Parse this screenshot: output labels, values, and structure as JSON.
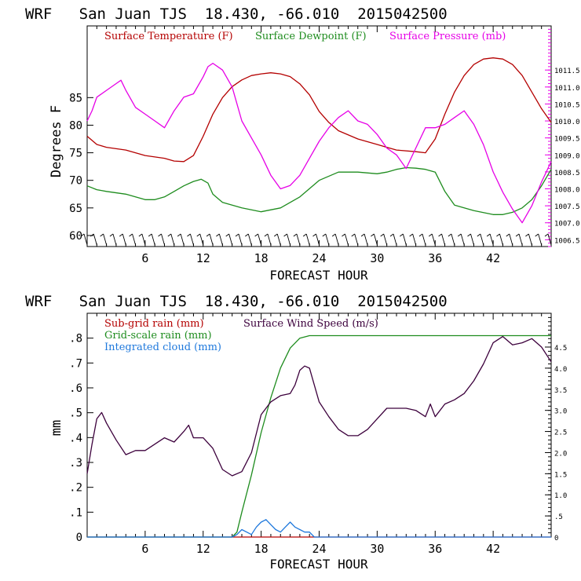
{
  "colors": {
    "temperature": "#b40000",
    "dewpoint": "#1e8c1e",
    "pressure": "#e600e6",
    "subgrid_rain": "#b40000",
    "gridscale_rain": "#1e8c1e",
    "cloud": "#1e78dc",
    "wind": "#3c003c",
    "axis": "#000000",
    "tick_right_top": "#e600e6",
    "tick_right_bottom": "#000000",
    "barbs": "#000000"
  },
  "chart_data": [
    {
      "type": "line",
      "title": "WRF   San Juan TJS  18.430, -66.010  2015042500",
      "xlabel": "FORECAST HOUR",
      "ylabel": "Degrees F",
      "xlim": [
        0,
        48
      ],
      "ylim": [
        58,
        98
      ],
      "ylim_right": [
        1006.3,
        1012.8
      ],
      "x_ticks": [
        6,
        12,
        18,
        24,
        30,
        36,
        42
      ],
      "x_tick_labels": [
        "6",
        "12",
        "18",
        "24",
        "30",
        "36",
        "42"
      ],
      "y_ticks": [
        60,
        65,
        70,
        75,
        80,
        85
      ],
      "y_tick_labels": [
        "60",
        "65",
        "70",
        "75",
        "80",
        "85"
      ],
      "y2_ticks": [
        1006.5,
        1007.0,
        1007.5,
        1008.0,
        1008.5,
        1009.0,
        1009.5,
        1010.0,
        1010.5,
        1011.0,
        1011.5
      ],
      "y2_tick_labels": [
        "1006.5",
        "1007.0",
        "1007.5",
        "1008.0",
        "1008.5",
        "1009.0",
        "1009.5",
        "1010.0",
        "1010.5",
        "1011.0",
        "1011.5"
      ],
      "legend": [
        "Surface Temperature (F)",
        "Surface Dewpoint (F)",
        "Surface Pressure (mb)"
      ],
      "legend_placement": "top-inside",
      "has_wind_barbs": true,
      "series": [
        {
          "name": "Surface Temperature (F)",
          "axis": "left",
          "x": [
            0,
            1,
            2,
            4,
            6,
            8,
            9,
            10,
            11,
            12,
            13,
            14,
            15,
            16,
            17,
            18,
            19,
            20,
            21,
            22,
            23,
            24,
            25,
            26,
            28,
            30,
            31,
            32,
            34,
            35,
            36,
            37,
            38,
            39,
            40,
            41,
            42,
            43,
            44,
            45,
            46,
            47,
            48
          ],
          "values": [
            78.0,
            76.5,
            76.0,
            75.5,
            74.5,
            74.0,
            73.5,
            73.4,
            74.5,
            78.0,
            82.0,
            85.0,
            87.0,
            88.2,
            89.0,
            89.3,
            89.5,
            89.3,
            88.8,
            87.5,
            85.5,
            82.5,
            80.5,
            79.0,
            77.5,
            76.5,
            76.0,
            75.5,
            75.2,
            75.0,
            77.5,
            82.0,
            86.0,
            89.0,
            91.0,
            92.0,
            92.2,
            92.0,
            91.0,
            89.0,
            86.0,
            83.0,
            80.5
          ]
        },
        {
          "name": "Surface Dewpoint (F)",
          "axis": "left",
          "x": [
            0,
            1,
            2,
            4,
            6,
            7,
            8,
            9,
            10,
            11,
            11.8,
            12.5,
            13,
            14,
            16,
            18,
            20,
            22,
            24,
            26,
            28,
            30,
            31,
            32,
            33,
            34,
            35,
            36,
            37,
            38,
            40,
            42,
            43,
            44,
            45,
            46,
            47,
            48
          ],
          "values": [
            69.0,
            68.3,
            68.0,
            67.5,
            66.5,
            66.5,
            67.0,
            68.0,
            69.0,
            69.8,
            70.2,
            69.5,
            67.5,
            66.0,
            65.0,
            64.3,
            65.0,
            67.0,
            70.0,
            71.5,
            71.5,
            71.2,
            71.5,
            72.0,
            72.3,
            72.2,
            72.0,
            71.5,
            68.0,
            65.5,
            64.5,
            63.8,
            63.8,
            64.2,
            65.0,
            66.5,
            69.0,
            72.0
          ]
        },
        {
          "name": "Surface Pressure (mb)",
          "axis": "right",
          "x": [
            0,
            0.5,
            1,
            2,
            3,
            3.5,
            4,
            5,
            6,
            7,
            8,
            9,
            10,
            11,
            12,
            12.5,
            13,
            14,
            15,
            16,
            17,
            18,
            19,
            20,
            21,
            22,
            23,
            24,
            25,
            26,
            27,
            28,
            29,
            30,
            31,
            32,
            33,
            34,
            35,
            36,
            37,
            38,
            39,
            40,
            41,
            42,
            43,
            44,
            45,
            46,
            47,
            48
          ],
          "values": [
            1010.0,
            1010.3,
            1010.7,
            1010.9,
            1011.1,
            1011.2,
            1010.9,
            1010.4,
            1010.2,
            1010.0,
            1009.8,
            1010.3,
            1010.7,
            1010.8,
            1011.3,
            1011.6,
            1011.7,
            1011.5,
            1011.0,
            1010.0,
            1009.5,
            1009.0,
            1008.4,
            1008.0,
            1008.1,
            1008.4,
            1008.9,
            1009.4,
            1009.8,
            1010.1,
            1010.3,
            1010.0,
            1009.9,
            1009.6,
            1009.2,
            1009.0,
            1008.6,
            1009.2,
            1009.8,
            1009.8,
            1009.9,
            1010.1,
            1010.3,
            1009.9,
            1009.3,
            1008.5,
            1007.9,
            1007.4,
            1007.0,
            1007.5,
            1008.2,
            1008.8
          ]
        }
      ]
    },
    {
      "type": "line",
      "title": "WRF   San Juan TJS  18.430, -66.010  2015042500",
      "xlabel": "FORECAST HOUR",
      "ylabel": "mm",
      "xlim": [
        0,
        48
      ],
      "ylim": [
        0,
        0.9
      ],
      "ylim_right": [
        0,
        5.3
      ],
      "x_ticks": [
        6,
        12,
        18,
        24,
        30,
        36,
        42
      ],
      "x_tick_labels": [
        "6",
        "12",
        "18",
        "24",
        "30",
        "36",
        "42"
      ],
      "y_ticks": [
        0,
        0.1,
        0.2,
        0.3,
        0.4,
        0.5,
        0.6,
        0.7,
        0.8
      ],
      "y_tick_labels": [
        "0",
        ".1",
        ".2",
        ".3",
        ".4",
        ".5",
        ".6",
        ".7",
        ".8"
      ],
      "y2_ticks": [
        0,
        0.5,
        1.0,
        1.5,
        2.0,
        2.5,
        3.0,
        3.5,
        4.0,
        4.5
      ],
      "y2_tick_labels": [
        "0",
        ".5",
        "1.0",
        "1.5",
        "2.0",
        "2.5",
        "3.0",
        "3.5",
        "4.0",
        "4.5"
      ],
      "legend": [
        "Sub-grid rain (mm)",
        "Grid-scale rain (mm)",
        "Integrated cloud (mm)",
        "Surface Wind Speed (m/s)"
      ],
      "legend_placement": "top-inside",
      "series": [
        {
          "name": "Sub-grid rain (mm)",
          "axis": "left",
          "x": [
            0,
            48
          ],
          "values": [
            0,
            0
          ]
        },
        {
          "name": "Grid-scale rain (mm)",
          "axis": "left",
          "x": [
            0,
            15,
            15.5,
            16,
            17,
            18,
            19,
            20,
            21,
            22,
            23,
            48
          ],
          "values": [
            0,
            0,
            0.02,
            0.1,
            0.25,
            0.42,
            0.56,
            0.68,
            0.76,
            0.8,
            0.81,
            0.81
          ]
        },
        {
          "name": "Integrated cloud (mm)",
          "axis": "left",
          "x": [
            0,
            15,
            15.5,
            16,
            16.5,
            17,
            17.5,
            18,
            18.5,
            19,
            19.5,
            20,
            20.5,
            21,
            21.5,
            22,
            22.5,
            23,
            23.5,
            24,
            48
          ],
          "values": [
            0,
            0,
            0.01,
            0.03,
            0.02,
            0.01,
            0.04,
            0.06,
            0.07,
            0.05,
            0.03,
            0.02,
            0.04,
            0.06,
            0.04,
            0.03,
            0.02,
            0.02,
            0.0,
            0.0,
            0.0
          ]
        },
        {
          "name": "Surface Wind Speed (m/s)",
          "axis": "right",
          "x": [
            0,
            0.5,
            1,
            1.5,
            2,
            3,
            4,
            5,
            6,
            7,
            8,
            9,
            10,
            10.5,
            11,
            11.5,
            12,
            13,
            14,
            15,
            16,
            17,
            18,
            19,
            20,
            21,
            21.5,
            22,
            22.5,
            23,
            24,
            25,
            26,
            27,
            28,
            29,
            30,
            31,
            32,
            33,
            34,
            35,
            35.5,
            36,
            37,
            38,
            39,
            40,
            41,
            42,
            43,
            44,
            45,
            46,
            47,
            48
          ],
          "values": [
            1.5,
            2.2,
            2.8,
            2.95,
            2.7,
            2.3,
            1.95,
            2.05,
            2.05,
            2.2,
            2.35,
            2.25,
            2.5,
            2.65,
            2.35,
            2.35,
            2.35,
            2.1,
            1.6,
            1.45,
            1.55,
            2.0,
            2.9,
            3.2,
            3.35,
            3.4,
            3.6,
            3.95,
            4.05,
            4.0,
            3.2,
            2.85,
            2.55,
            2.4,
            2.4,
            2.55,
            2.8,
            3.05,
            3.05,
            3.05,
            3.0,
            2.85,
            3.15,
            2.85,
            3.15,
            3.25,
            3.4,
            3.7,
            4.1,
            4.6,
            4.75,
            4.55,
            4.6,
            4.7,
            4.5,
            4.15
          ]
        }
      ]
    }
  ]
}
